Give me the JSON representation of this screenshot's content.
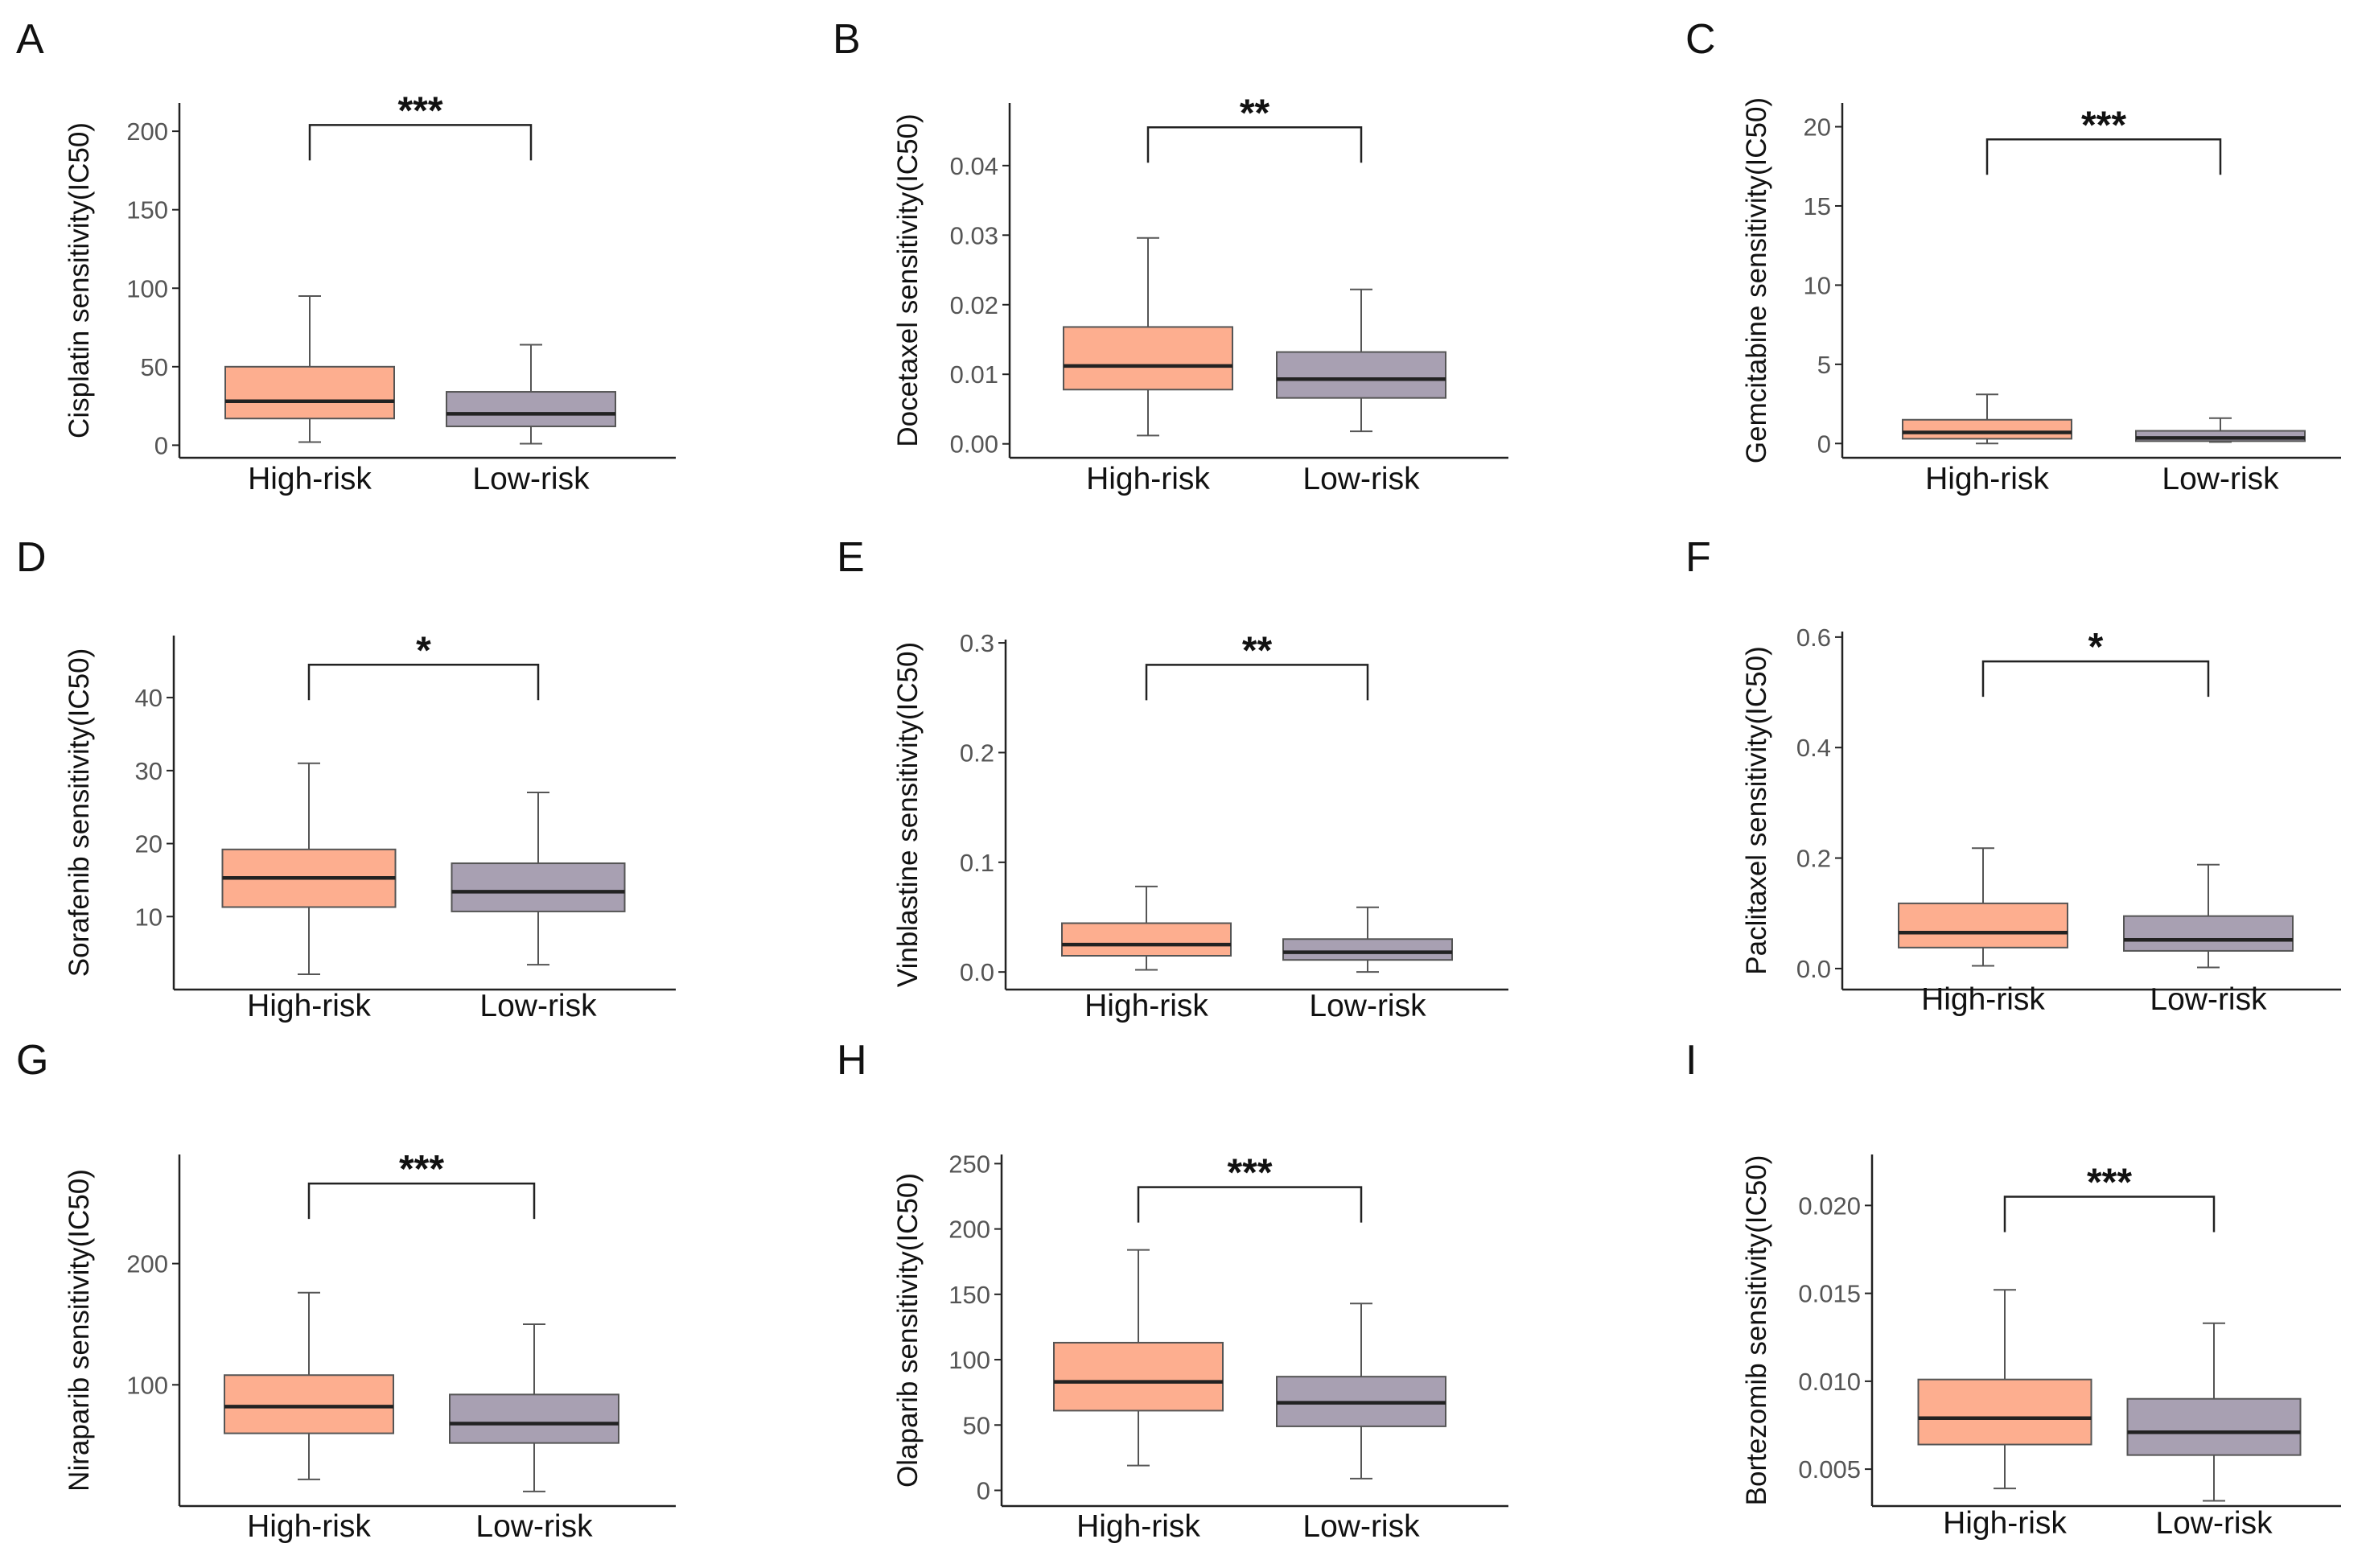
{
  "colors": {
    "high_risk_fill": "#FDAE8F",
    "low_risk_fill": "#A8A0B2",
    "box_stroke": "#555555",
    "median": "#222222",
    "axis": "#222222",
    "tick_text": "#555555",
    "label_text": "#111111"
  },
  "chart_data": [
    {
      "panel": "A",
      "type": "box",
      "ylabel": "Cisplatin sensitivity(IC50)",
      "categories": [
        "High-risk",
        "Low-risk"
      ],
      "significance": "***",
      "ylim": [
        -8,
        218
      ],
      "yticks": [
        0,
        50,
        100,
        150,
        200
      ],
      "ytick_labels": [
        "0",
        "50",
        "100",
        "150",
        "200"
      ],
      "bracket_y": 204,
      "boxes": [
        {
          "name": "High-risk",
          "whisker_low": 2,
          "q1": 17,
          "median": 28,
          "q3": 50,
          "whisker_high": 95
        },
        {
          "name": "Low-risk",
          "whisker_low": 1,
          "q1": 12,
          "median": 20,
          "q3": 34,
          "whisker_high": 64
        }
      ]
    },
    {
      "panel": "B",
      "type": "box",
      "ylabel": "Docetaxel sensitivity(IC50)",
      "categories": [
        "High-risk",
        "Low-risk"
      ],
      "significance": "**",
      "ylim": [
        -0.002,
        0.049
      ],
      "yticks": [
        0,
        0.01,
        0.02,
        0.03,
        0.04
      ],
      "ytick_labels": [
        "0.00",
        "0.01",
        "0.02",
        "0.03",
        "0.04"
      ],
      "bracket_y": 0.0455,
      "boxes": [
        {
          "name": "High-risk",
          "whisker_low": 0.0012,
          "q1": 0.0078,
          "median": 0.0112,
          "q3": 0.0168,
          "whisker_high": 0.0296
        },
        {
          "name": "Low-risk",
          "whisker_low": 0.0018,
          "q1": 0.0066,
          "median": 0.0093,
          "q3": 0.0132,
          "whisker_high": 0.0222
        }
      ]
    },
    {
      "panel": "C",
      "type": "box",
      "ylabel": "Gemcitabine sensitivity(IC50)",
      "categories": [
        "High-risk",
        "Low-risk"
      ],
      "significance": "***",
      "ylim": [
        -0.9,
        21.5
      ],
      "yticks": [
        0,
        5,
        10,
        15,
        20
      ],
      "ytick_labels": [
        "0",
        "5",
        "10",
        "15",
        "20"
      ],
      "bracket_y": 19.2,
      "boxes": [
        {
          "name": "High-risk",
          "whisker_low": 0.0,
          "q1": 0.3,
          "median": 0.7,
          "q3": 1.5,
          "whisker_high": 3.1
        },
        {
          "name": "Low-risk",
          "whisker_low": 0.1,
          "q1": 0.15,
          "median": 0.35,
          "q3": 0.8,
          "whisker_high": 1.6
        }
      ]
    },
    {
      "panel": "D",
      "type": "box",
      "ylabel": "Sorafenib sensitivity(IC50)",
      "categories": [
        "High-risk",
        "Low-risk"
      ],
      "significance": "*",
      "ylim": [
        0,
        48.5
      ],
      "yticks": [
        10,
        20,
        30,
        40
      ],
      "ytick_labels": [
        "10",
        "20",
        "30",
        "40"
      ],
      "bracket_y": 44.5,
      "boxes": [
        {
          "name": "High-risk",
          "whisker_low": 2.1,
          "q1": 11.3,
          "median": 15.3,
          "q3": 19.2,
          "whisker_high": 31
        },
        {
          "name": "Low-risk",
          "whisker_low": 3.4,
          "q1": 10.7,
          "median": 13.4,
          "q3": 17.3,
          "whisker_high": 27
        }
      ]
    },
    {
      "panel": "E",
      "type": "box",
      "ylabel": "Vinblastine sensitivity(IC50)",
      "categories": [
        "High-risk",
        "Low-risk"
      ],
      "significance": "**",
      "ylim": [
        -0.016,
        0.303
      ],
      "yticks": [
        0,
        0.1,
        0.2,
        0.3
      ],
      "ytick_labels": [
        "0.0",
        "0.1",
        "0.2",
        "0.3"
      ],
      "bracket_y": 0.28,
      "boxes": [
        {
          "name": "High-risk",
          "whisker_low": 0.002,
          "q1": 0.0148,
          "median": 0.025,
          "q3": 0.0445,
          "whisker_high": 0.078
        },
        {
          "name": "Low-risk",
          "whisker_low": 0.0,
          "q1": 0.011,
          "median": 0.018,
          "q3": 0.03,
          "whisker_high": 0.059
        }
      ]
    },
    {
      "panel": "F",
      "type": "box",
      "ylabel": "Paclitaxel sensitivity(IC50)",
      "categories": [
        "High-risk",
        "Low-risk"
      ],
      "significance": "*",
      "ylim": [
        -0.038,
        0.61
      ],
      "yticks": [
        0,
        0.2,
        0.4,
        0.6
      ],
      "ytick_labels": [
        "0.0",
        "0.2",
        "0.4",
        "0.6"
      ],
      "bracket_y": 0.556,
      "boxes": [
        {
          "name": "High-risk",
          "whisker_low": 0.005,
          "q1": 0.038,
          "median": 0.065,
          "q3": 0.118,
          "whisker_high": 0.218
        },
        {
          "name": "Low-risk",
          "whisker_low": 0.002,
          "q1": 0.032,
          "median": 0.052,
          "q3": 0.095,
          "whisker_high": 0.188
        }
      ]
    },
    {
      "panel": "G",
      "type": "box",
      "ylabel": "Niraparib sensitivity(IC50)",
      "categories": [
        "High-risk",
        "Low-risk"
      ],
      "significance": "***",
      "ylim": [
        0,
        290
      ],
      "yticks": [
        100,
        200
      ],
      "ytick_labels": [
        "100",
        "200"
      ],
      "bracket_y": 266,
      "boxes": [
        {
          "name": "High-risk",
          "whisker_low": 22,
          "q1": 60,
          "median": 82,
          "q3": 108,
          "whisker_high": 176
        },
        {
          "name": "Low-risk",
          "whisker_low": 12,
          "q1": 52,
          "median": 68,
          "q3": 92,
          "whisker_high": 150
        }
      ]
    },
    {
      "panel": "H",
      "type": "box",
      "ylabel": "Olaparib sensitivity(IC50)",
      "categories": [
        "High-risk",
        "Low-risk"
      ],
      "significance": "***",
      "ylim": [
        -12,
        257
      ],
      "yticks": [
        0,
        50,
        100,
        150,
        200,
        250
      ],
      "ytick_labels": [
        "0",
        "50",
        "100",
        "150",
        "200",
        "250"
      ],
      "bracket_y": 232,
      "boxes": [
        {
          "name": "High-risk",
          "whisker_low": 19,
          "q1": 61,
          "median": 83,
          "q3": 113,
          "whisker_high": 184
        },
        {
          "name": "Low-risk",
          "whisker_low": 9,
          "q1": 49,
          "median": 67,
          "q3": 87,
          "whisker_high": 143
        }
      ]
    },
    {
      "panel": "I",
      "type": "box",
      "ylabel": "Bortezomib sensitivity(IC50)",
      "categories": [
        "High-risk",
        "Low-risk"
      ],
      "significance": "***",
      "ylim": [
        0.0029,
        0.0229
      ],
      "yticks": [
        0.005,
        0.01,
        0.015,
        0.02
      ],
      "ytick_labels": [
        "0.005",
        "0.010",
        "0.015",
        "0.020"
      ],
      "bracket_y": 0.0205,
      "boxes": [
        {
          "name": "High-risk",
          "whisker_low": 0.0039,
          "q1": 0.0064,
          "median": 0.0079,
          "q3": 0.0101,
          "whisker_high": 0.0152
        },
        {
          "name": "Low-risk",
          "whisker_low": 0.0032,
          "q1": 0.0058,
          "median": 0.0071,
          "q3": 0.009,
          "whisker_high": 0.0133
        }
      ]
    }
  ]
}
